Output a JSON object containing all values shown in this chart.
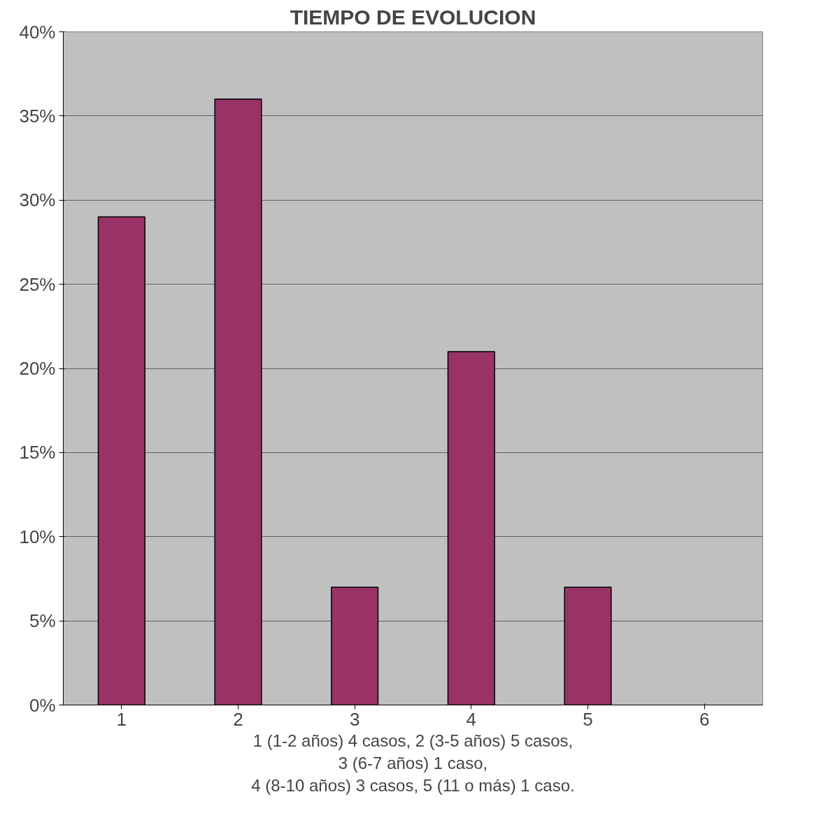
{
  "chart_data": {
    "type": "bar",
    "title": "TIEMPO DE EVOLUCION",
    "xlabel": "1 (1-2 años) 4 casos, 2 (3-5 años) 5 casos,\n3 (6-7 años) 1 caso,\n4 (8-10 años) 3 casos, 5 (11 o más) 1 caso.",
    "categories": [
      "1",
      "2",
      "3",
      "4",
      "5",
      "6"
    ],
    "values": [
      29,
      36,
      7,
      21,
      7,
      null
    ],
    "color": "#993366",
    "ylim": [
      0,
      40
    ],
    "yticks": [
      {
        "value": 0,
        "label": "0%"
      },
      {
        "value": 5,
        "label": "5%"
      },
      {
        "value": 10,
        "label": "10%"
      },
      {
        "value": 15,
        "label": "15%"
      },
      {
        "value": 20,
        "label": "20%"
      },
      {
        "value": 25,
        "label": "25%"
      },
      {
        "value": 30,
        "label": "30%"
      },
      {
        "value": 35,
        "label": "35%"
      },
      {
        "value": 40,
        "label": "40%"
      }
    ],
    "grid": "y"
  }
}
